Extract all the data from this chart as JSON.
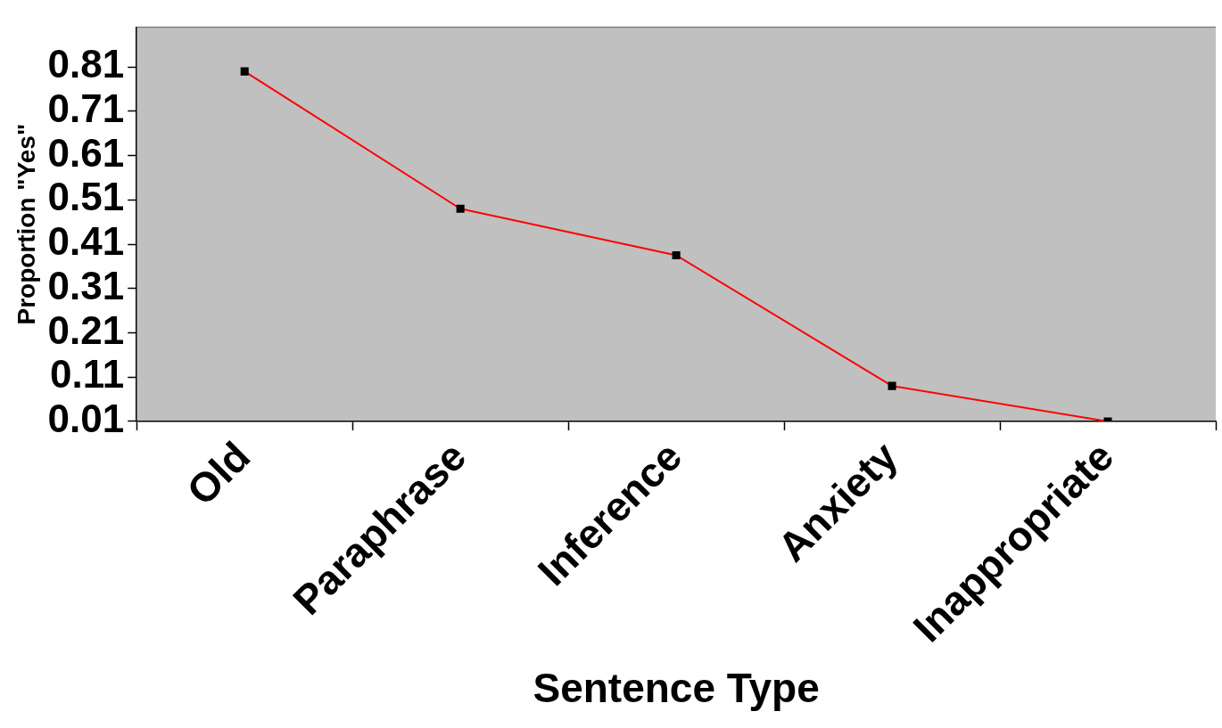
{
  "chart_data": {
    "type": "line",
    "xlabel": "Sentence Type",
    "ylabel": "Proportion \"Yes\"",
    "categories": [
      "Old",
      "Paraphrase",
      "Inference",
      "Anxiety",
      "Inappropriate"
    ],
    "series": [
      {
        "color": "#ff0000",
        "values": [
          0.8,
          0.49,
          0.385,
          0.09,
          0.01
        ]
      }
    ],
    "ylim": [
      0.01,
      0.9
    ],
    "yticks": [
      0.01,
      0.11,
      0.21,
      0.31,
      0.41,
      0.51,
      0.61,
      0.71,
      0.81
    ],
    "grid": false,
    "legend": false,
    "marker": "square",
    "line_style": "solid"
  }
}
